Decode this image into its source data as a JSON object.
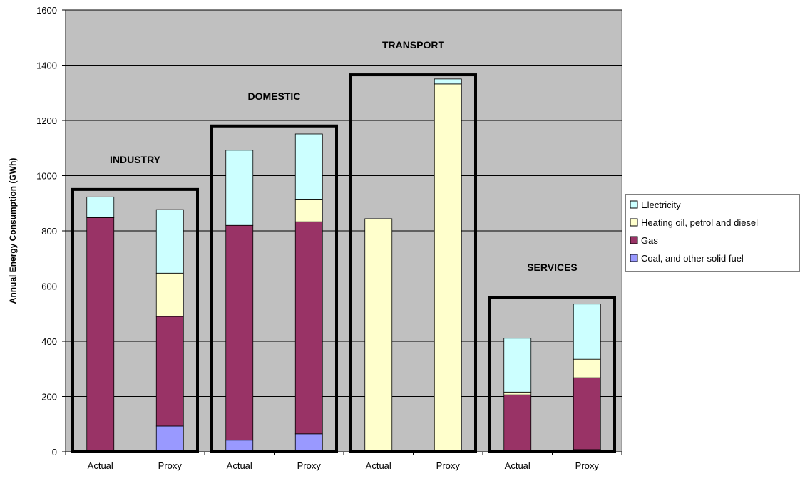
{
  "chart_data": {
    "type": "bar",
    "stacked": true,
    "title": "",
    "xlabel": "",
    "ylabel": "Annual Energy Consumption (GWh)",
    "ylim": [
      0,
      1600
    ],
    "yticks": [
      0,
      200,
      400,
      600,
      800,
      1000,
      1200,
      1400,
      1600
    ],
    "grid": true,
    "legend_position": "right",
    "categories": [
      "Actual",
      "Proxy",
      "Actual",
      "Proxy",
      "Actual",
      "Proxy",
      "Actual",
      "Proxy"
    ],
    "groups": [
      {
        "label": "INDUSTRY",
        "boxTop": 950,
        "categoryIndices": [
          0,
          1
        ]
      },
      {
        "label": "DOMESTIC",
        "boxTop": 1180,
        "categoryIndices": [
          2,
          3
        ]
      },
      {
        "label": "TRANSPORT",
        "boxTop": 1365,
        "categoryIndices": [
          4,
          5
        ]
      },
      {
        "label": "SERVICES",
        "boxTop": 560,
        "categoryIndices": [
          6,
          7
        ]
      }
    ],
    "series": [
      {
        "name": "Coal, and other solid fuel",
        "color": "#9999FF",
        "values": [
          3,
          93,
          42,
          65,
          2,
          2,
          3,
          8
        ]
      },
      {
        "name": "Gas",
        "color": "#993366",
        "values": [
          845,
          397,
          778,
          768,
          0,
          0,
          203,
          260
        ]
      },
      {
        "name": "Heating oil, petrol and diesel",
        "color": "#FFFFCC",
        "values": [
          0,
          157,
          0,
          82,
          842,
          1330,
          10,
          67
        ]
      },
      {
        "name": "Electricity",
        "color": "#CCFFFF",
        "values": [
          75,
          230,
          272,
          236,
          0,
          18,
          195,
          200
        ]
      }
    ],
    "legend_order": [
      3,
      2,
      1,
      0
    ]
  }
}
